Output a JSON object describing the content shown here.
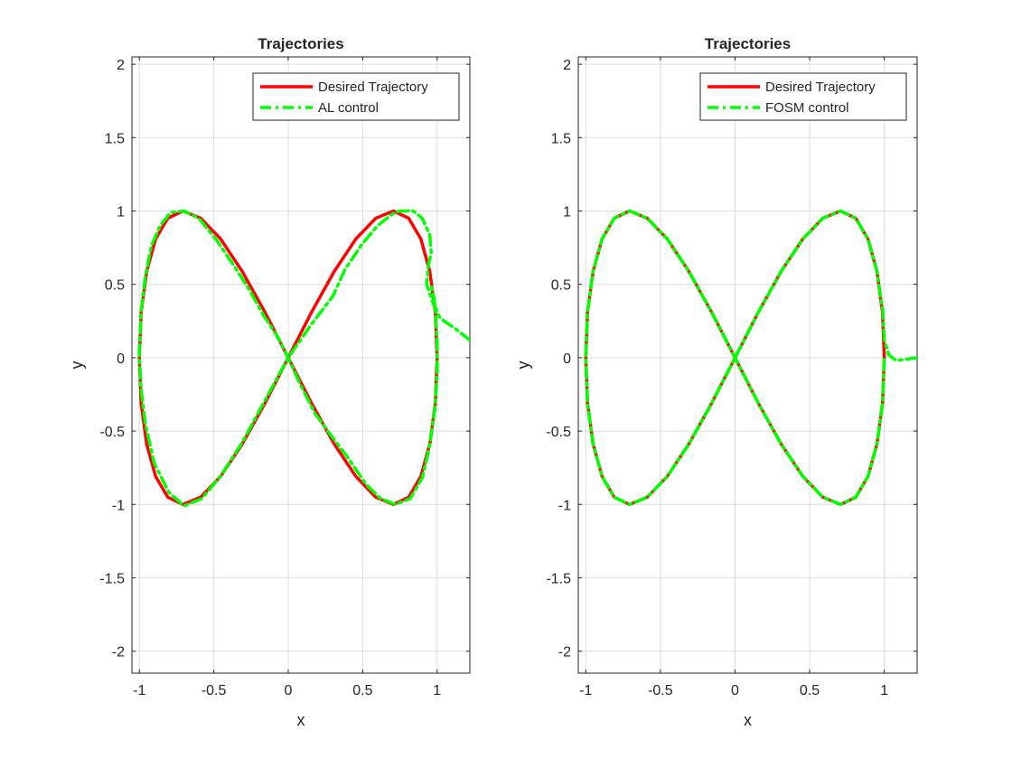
{
  "chart_data": [
    {
      "type": "line",
      "title": "Trajectories",
      "xlabel": "x",
      "ylabel": "y",
      "xlim": [
        -1.05,
        1.22
      ],
      "ylim": [
        -2.15,
        2.05
      ],
      "xticks": [
        -1,
        -0.5,
        0,
        0.5,
        1
      ],
      "yticks": [
        -2,
        -1.5,
        -1,
        -0.5,
        0,
        0.5,
        1,
        1.5,
        2
      ],
      "grid": true,
      "legend": "top-right",
      "series": [
        {
          "name": "Desired Trajectory",
          "color": "#ff0000",
          "style": "solid",
          "x": [
            1.0,
            0.988,
            0.951,
            0.891,
            0.809,
            0.707,
            0.588,
            0.454,
            0.309,
            0.156,
            0.0,
            -0.156,
            -0.309,
            -0.454,
            -0.588,
            -0.707,
            -0.809,
            -0.891,
            -0.951,
            -0.988,
            -1.0,
            -0.988,
            -0.951,
            -0.891,
            -0.809,
            -0.707,
            -0.588,
            -0.454,
            -0.309,
            -0.156,
            0.0,
            0.156,
            0.309,
            0.454,
            0.588,
            0.707,
            0.809,
            0.891,
            0.951,
            0.988,
            1.0
          ],
          "y": [
            0.0,
            0.309,
            0.588,
            0.809,
            0.951,
            1.0,
            0.951,
            0.809,
            0.588,
            0.309,
            0.0,
            -0.309,
            -0.588,
            -0.809,
            -0.951,
            -1.0,
            -0.951,
            -0.809,
            -0.588,
            -0.309,
            0.0,
            0.309,
            0.588,
            0.809,
            0.951,
            1.0,
            0.951,
            0.809,
            0.588,
            0.309,
            0.0,
            -0.309,
            -0.588,
            -0.809,
            -0.951,
            -1.0,
            -0.951,
            -0.809,
            -0.588,
            -0.309,
            0.0
          ]
        },
        {
          "name": "AL control",
          "color": "#00ff00",
          "style": "dashdot",
          "x": [
            1.22,
            1.12,
            1.02,
            0.97,
            0.93,
            0.94,
            0.96,
            0.95,
            0.9,
            0.84,
            0.75,
            0.7,
            0.6,
            0.5,
            0.38,
            0.3,
            0.15,
            0.0,
            -0.15,
            -0.31,
            -0.45,
            -0.58,
            -0.7,
            -0.8,
            -0.9,
            -0.96,
            -0.99,
            -1.0,
            -0.99,
            -0.96,
            -0.92,
            -0.86,
            -0.79,
            -0.7,
            -0.6,
            -0.48,
            -0.36,
            -0.26,
            -0.16,
            -0.07,
            0.0,
            0.08,
            0.18,
            0.28,
            0.4,
            0.52,
            0.62,
            0.72,
            0.82,
            0.9,
            0.95,
            0.985,
            1.0,
            1.0,
            0.99,
            0.98,
            0.96
          ],
          "y": [
            0.12,
            0.2,
            0.27,
            0.38,
            0.5,
            0.62,
            0.72,
            0.84,
            0.95,
            1.0,
            1.0,
            0.98,
            0.9,
            0.78,
            0.6,
            0.42,
            0.22,
            0.0,
            -0.28,
            -0.58,
            -0.8,
            -0.96,
            -1.01,
            -0.92,
            -0.72,
            -0.45,
            -0.2,
            0.02,
            0.3,
            0.55,
            0.76,
            0.9,
            0.99,
            1.0,
            0.95,
            0.8,
            0.62,
            0.46,
            0.28,
            0.14,
            0.0,
            -0.18,
            -0.38,
            -0.52,
            -0.68,
            -0.86,
            -0.96,
            -1.0,
            -0.96,
            -0.82,
            -0.6,
            -0.35,
            -0.1,
            0.1,
            0.3,
            0.4,
            0.5
          ]
        }
      ]
    },
    {
      "type": "line",
      "title": "Trajectories",
      "xlabel": "x",
      "ylabel": "y",
      "xlim": [
        -1.05,
        1.22
      ],
      "ylim": [
        -2.15,
        2.05
      ],
      "xticks": [
        -1,
        -0.5,
        0,
        0.5,
        1
      ],
      "yticks": [
        -2,
        -1.5,
        -1,
        -0.5,
        0,
        0.5,
        1,
        1.5,
        2
      ],
      "grid": true,
      "legend": "top-right",
      "series": [
        {
          "name": "Desired Trajectory",
          "color": "#ff0000",
          "style": "solid",
          "x": [
            1.0,
            0.988,
            0.951,
            0.891,
            0.809,
            0.707,
            0.588,
            0.454,
            0.309,
            0.156,
            0.0,
            -0.156,
            -0.309,
            -0.454,
            -0.588,
            -0.707,
            -0.809,
            -0.891,
            -0.951,
            -0.988,
            -1.0,
            -0.988,
            -0.951,
            -0.891,
            -0.809,
            -0.707,
            -0.588,
            -0.454,
            -0.309,
            -0.156,
            0.0,
            0.156,
            0.309,
            0.454,
            0.588,
            0.707,
            0.809,
            0.891,
            0.951,
            0.988,
            1.0
          ],
          "y": [
            0.0,
            0.309,
            0.588,
            0.809,
            0.951,
            1.0,
            0.951,
            0.809,
            0.588,
            0.309,
            0.0,
            -0.309,
            -0.588,
            -0.809,
            -0.951,
            -1.0,
            -0.951,
            -0.809,
            -0.588,
            -0.309,
            0.0,
            0.309,
            0.588,
            0.809,
            0.951,
            1.0,
            0.951,
            0.809,
            0.588,
            0.309,
            0.0,
            -0.309,
            -0.588,
            -0.809,
            -0.951,
            -1.0,
            -0.951,
            -0.809,
            -0.588,
            -0.309,
            0.0
          ]
        },
        {
          "name": "FOSM control",
          "color": "#00ff00",
          "style": "dashdot",
          "x": [
            1.22,
            1.15,
            1.08,
            1.03,
            1.0,
            0.995,
            0.99,
            0.975,
            0.951,
            0.891,
            0.809,
            0.707,
            0.588,
            0.454,
            0.309,
            0.156,
            0.0,
            -0.156,
            -0.309,
            -0.454,
            -0.588,
            -0.707,
            -0.809,
            -0.891,
            -0.951,
            -0.988,
            -1.0,
            -0.988,
            -0.951,
            -0.891,
            -0.809,
            -0.707,
            -0.588,
            -0.454,
            -0.309,
            -0.156,
            0.0,
            0.156,
            0.309,
            0.454,
            0.588,
            0.707,
            0.809,
            0.891,
            0.951,
            0.988,
            1.0
          ],
          "y": [
            0.0,
            -0.01,
            -0.02,
            0.02,
            0.12,
            0.22,
            0.32,
            0.42,
            0.588,
            0.809,
            0.951,
            1.0,
            0.951,
            0.809,
            0.588,
            0.309,
            0.0,
            -0.309,
            -0.588,
            -0.809,
            -0.951,
            -1.0,
            -0.951,
            -0.809,
            -0.588,
            -0.309,
            0.0,
            0.309,
            0.588,
            0.809,
            0.951,
            1.0,
            0.951,
            0.809,
            0.588,
            0.309,
            0.0,
            -0.309,
            -0.588,
            -0.809,
            -0.951,
            -1.0,
            -0.951,
            -0.809,
            -0.588,
            -0.309,
            0.0
          ]
        }
      ]
    }
  ]
}
